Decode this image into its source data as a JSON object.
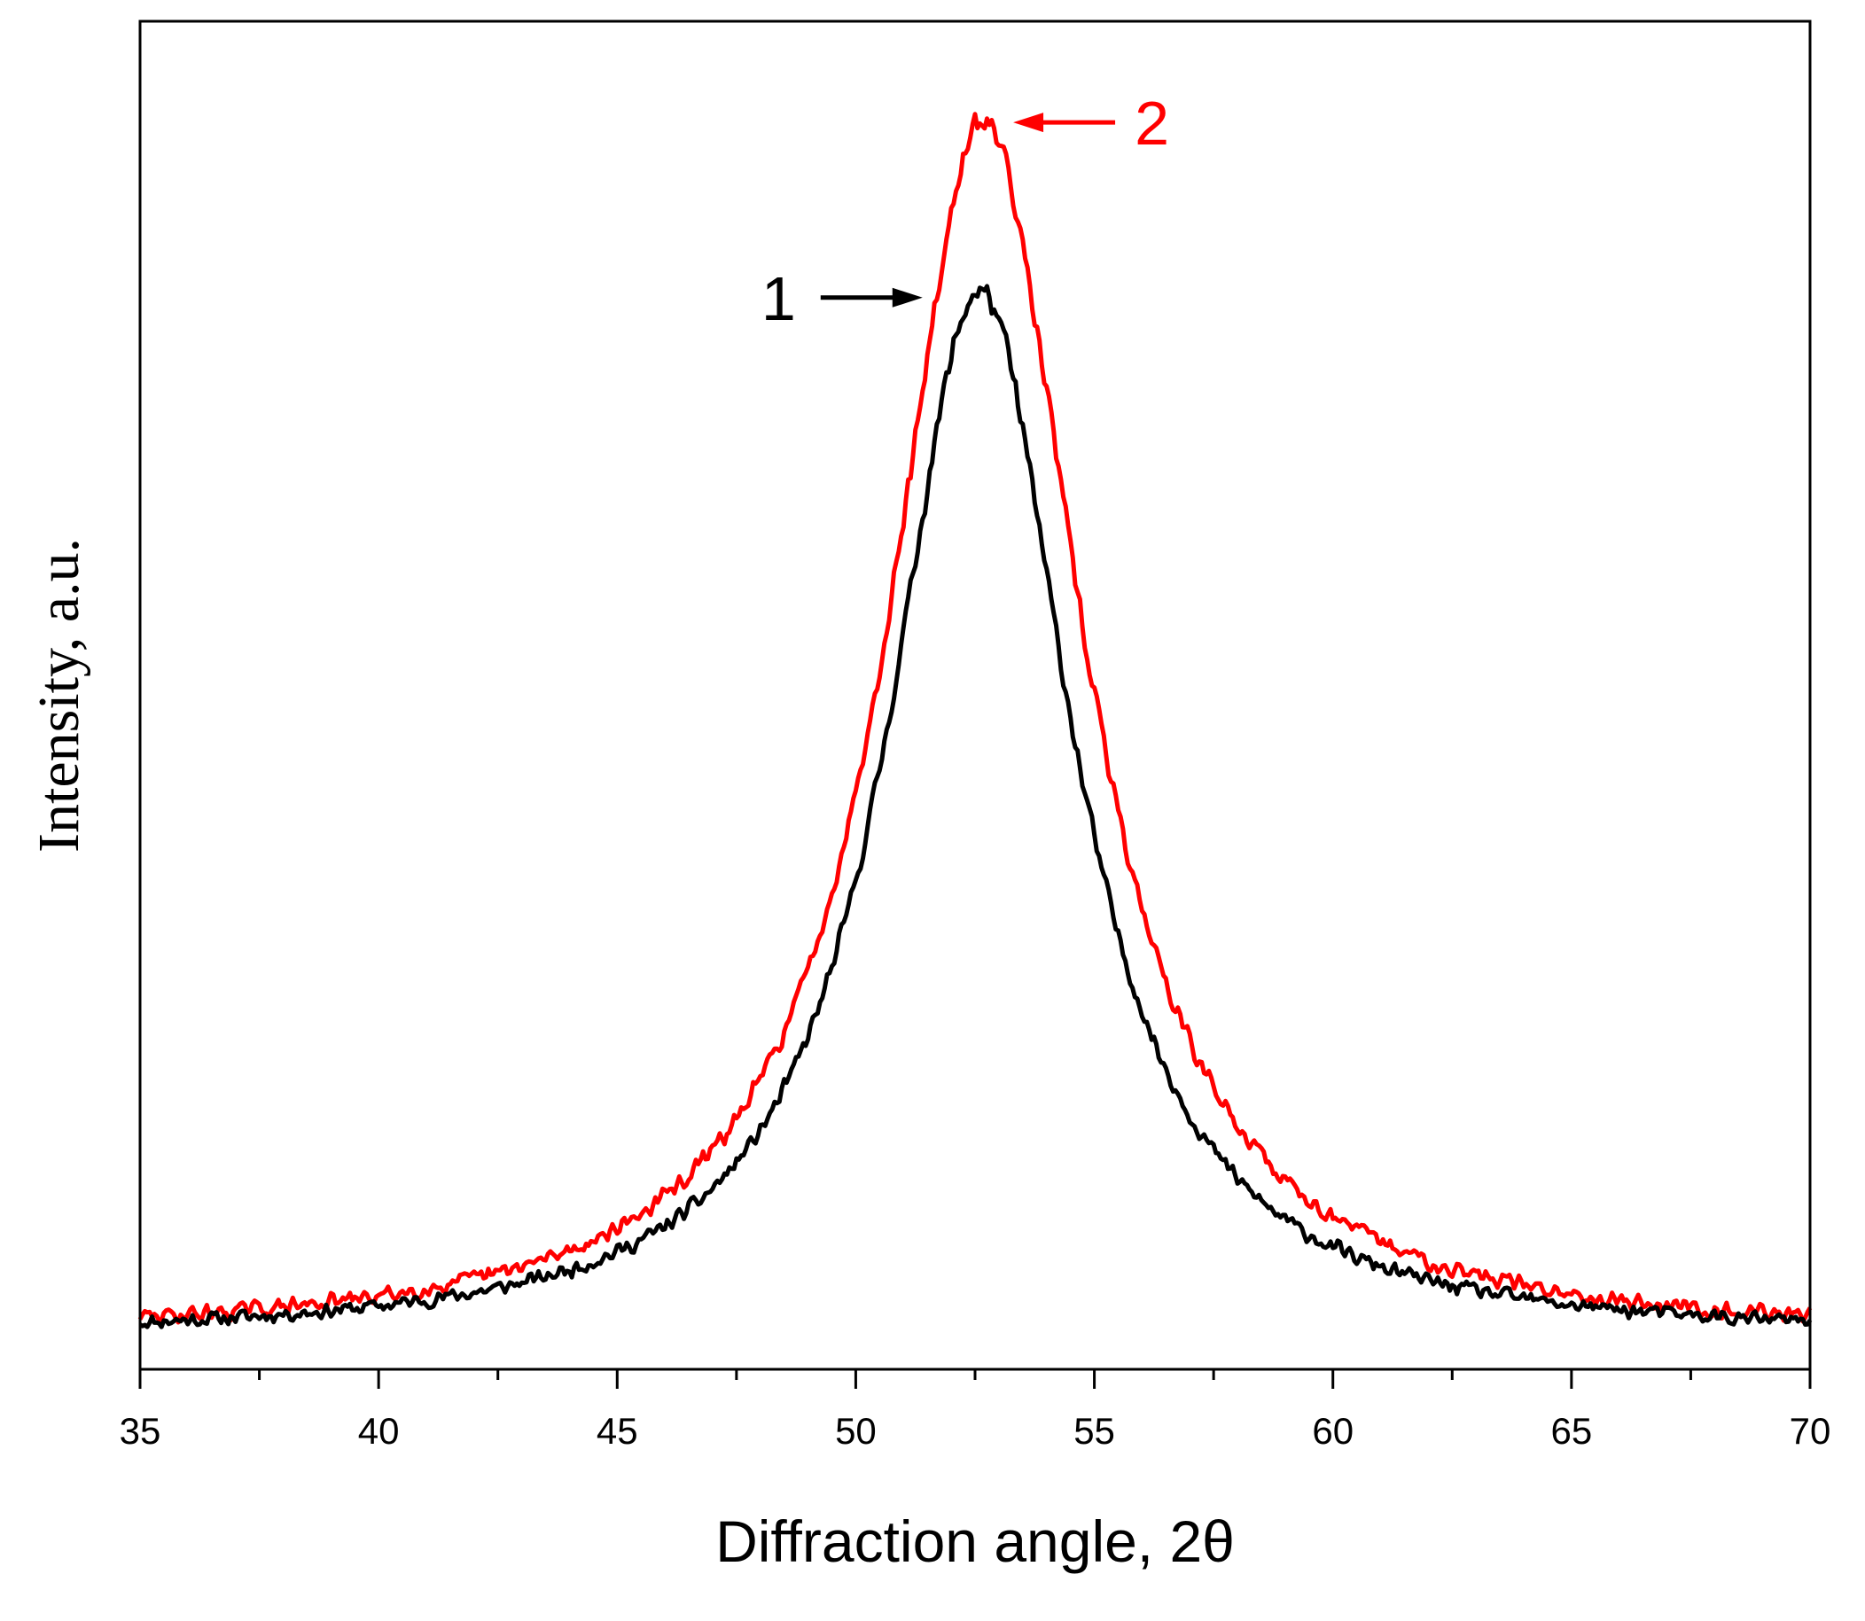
{
  "chart_data": {
    "type": "line",
    "title": "",
    "xlabel": "Diffraction angle, 2θ",
    "ylabel": "Intensity, a.u.",
    "xlim": [
      35,
      70
    ],
    "ylim": [
      0,
      100
    ],
    "xticks": [
      35,
      40,
      45,
      50,
      55,
      60,
      65,
      70
    ],
    "xtick_labels": [
      "35",
      "40",
      "45",
      "50",
      "55",
      "60",
      "65",
      "70"
    ],
    "y_tick_labels": false,
    "grid": false,
    "series": [
      {
        "name": "1",
        "color": "#000000",
        "peak_x": 52.6,
        "peak_y": 80.0,
        "baseline": 2.2,
        "hwhm": 2.3,
        "noise": 0.9,
        "seed": 11
      },
      {
        "name": "2",
        "color": "#ff0000",
        "peak_x": 52.7,
        "peak_y": 92.5,
        "baseline": 2.2,
        "hwhm": 2.45,
        "noise": 1.0,
        "seed": 29
      }
    ],
    "annotations": [
      {
        "label": "1",
        "color": "#000000",
        "arrow_direction": "right",
        "points_to_series": "1",
        "target_x": 51.4,
        "target_y": 79.5
      },
      {
        "label": "2",
        "color": "#ff0000",
        "arrow_direction": "left",
        "points_to_series": "2",
        "target_x": 53.3,
        "target_y": 92.5
      }
    ]
  }
}
